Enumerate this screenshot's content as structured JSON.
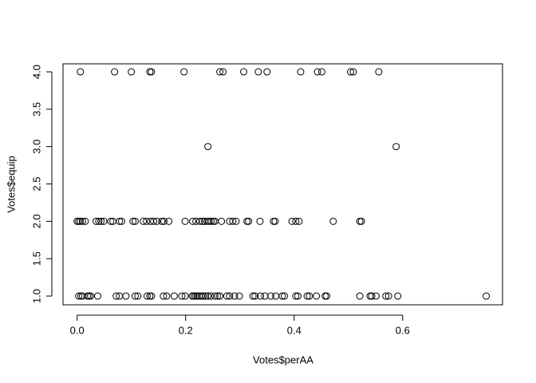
{
  "chart_data": {
    "type": "scatter",
    "xlabel": "Votes$perAA",
    "ylabel": "Votes$equip",
    "x": [
      0.006,
      0.069,
      0.1,
      0.134,
      0.137,
      0.197,
      0.263,
      0.269,
      0.307,
      0.334,
      0.35,
      0.412,
      0.443,
      0.451,
      0.504,
      0.509,
      0.556,
      0.241,
      0.588,
      0.0,
      0.003,
      0.006,
      0.01,
      0.015,
      0.035,
      0.04,
      0.044,
      0.049,
      0.062,
      0.066,
      0.078,
      0.082,
      0.103,
      0.107,
      0.122,
      0.128,
      0.135,
      0.141,
      0.147,
      0.156,
      0.16,
      0.169,
      0.199,
      0.213,
      0.219,
      0.226,
      0.231,
      0.235,
      0.24,
      0.243,
      0.247,
      0.251,
      0.254,
      0.266,
      0.281,
      0.287,
      0.293,
      0.313,
      0.316,
      0.337,
      0.362,
      0.365,
      0.396,
      0.403,
      0.409,
      0.472,
      0.521,
      0.524,
      0.003,
      0.007,
      0.01,
      0.019,
      0.022,
      0.025,
      0.038,
      0.072,
      0.078,
      0.09,
      0.107,
      0.112,
      0.129,
      0.134,
      0.137,
      0.159,
      0.165,
      0.179,
      0.193,
      0.199,
      0.212,
      0.215,
      0.218,
      0.221,
      0.225,
      0.229,
      0.232,
      0.237,
      0.241,
      0.246,
      0.254,
      0.259,
      0.263,
      0.276,
      0.281,
      0.29,
      0.299,
      0.324,
      0.328,
      0.338,
      0.346,
      0.357,
      0.366,
      0.378,
      0.382,
      0.403,
      0.407,
      0.424,
      0.428,
      0.441,
      0.457,
      0.46,
      0.521,
      0.54,
      0.543,
      0.551,
      0.569,
      0.574,
      0.591,
      0.754
    ],
    "values": [
      4,
      4,
      4,
      4,
      4,
      4,
      4,
      4,
      4,
      4,
      4,
      4,
      4,
      4,
      4,
      4,
      4,
      3,
      3,
      2,
      2,
      2,
      2,
      2,
      2,
      2,
      2,
      2,
      2,
      2,
      2,
      2,
      2,
      2,
      2,
      2,
      2,
      2,
      2,
      2,
      2,
      2,
      2,
      2,
      2,
      2,
      2,
      2,
      2,
      2,
      2,
      2,
      2,
      2,
      2,
      2,
      2,
      2,
      2,
      2,
      2,
      2,
      2,
      2,
      2,
      2,
      2,
      2,
      1,
      1,
      1,
      1,
      1,
      1,
      1,
      1,
      1,
      1,
      1,
      1,
      1,
      1,
      1,
      1,
      1,
      1,
      1,
      1,
      1,
      1,
      1,
      1,
      1,
      1,
      1,
      1,
      1,
      1,
      1,
      1,
      1,
      1,
      1,
      1,
      1,
      1,
      1,
      1,
      1,
      1,
      1,
      1,
      1,
      1,
      1,
      1,
      1,
      1,
      1,
      1,
      1,
      1,
      1,
      1,
      1,
      1,
      1,
      1
    ],
    "color": "#000000",
    "xlim": [
      -0.026,
      0.784
    ],
    "ylim": [
      0.883,
      4.107
    ],
    "xticks": [
      {
        "value": 0,
        "label": "0.0"
      },
      {
        "value": 0.2,
        "label": "0.2"
      },
      {
        "value": 0.4,
        "label": "0.4"
      },
      {
        "value": 0.6,
        "label": "0.6"
      }
    ],
    "yticks": [
      {
        "value": 1,
        "label": "1.0"
      },
      {
        "value": 1.5,
        "label": "1.5"
      },
      {
        "value": 2,
        "label": "2.0"
      },
      {
        "value": 2.5,
        "label": "2.5"
      },
      {
        "value": 3,
        "label": "3.0"
      },
      {
        "value": 3.5,
        "label": "3.5"
      },
      {
        "value": 4,
        "label": "4.0"
      }
    ]
  }
}
